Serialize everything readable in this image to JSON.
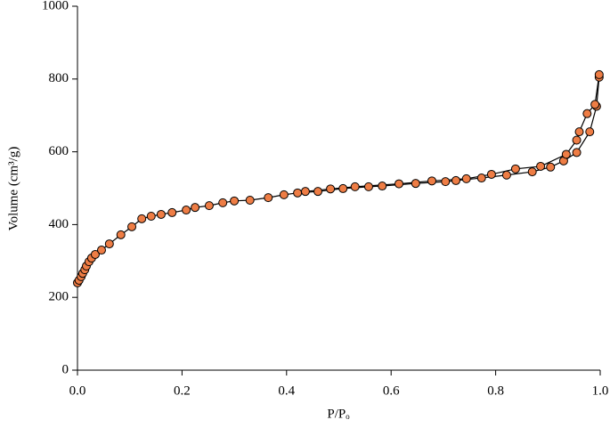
{
  "chart_data": {
    "type": "line",
    "xlabel": "P/Pₒ",
    "ylabel": "Volume (cm³/g)",
    "xlim": [
      0,
      1
    ],
    "ylim": [
      0,
      1000
    ],
    "xticks": [
      {
        "value": 0,
        "label": "0.0"
      },
      0.2,
      0.4,
      0.6,
      0.8,
      {
        "value": 1,
        "label": "1.0"
      }
    ],
    "yticks": [
      0,
      200,
      400,
      600,
      800,
      1000
    ],
    "line_color": "#000000",
    "marker_color": "#ee7d45",
    "series": [
      {
        "x": [
          0.0,
          0.003,
          0.007,
          0.01,
          0.014,
          0.017,
          0.022,
          0.027,
          0.034,
          0.046,
          0.061,
          0.083,
          0.104,
          0.123,
          0.141,
          0.16,
          0.181,
          0.208,
          0.225,
          0.252,
          0.278,
          0.3,
          0.33,
          0.365,
          0.395,
          0.421,
          0.46,
          0.508,
          0.557,
          0.583,
          0.647,
          0.704,
          0.724,
          0.773,
          0.821,
          0.87,
          0.905,
          0.93,
          0.955,
          0.98,
          0.993,
          0.998
        ],
        "values": [
          240,
          247,
          257,
          266,
          276,
          286,
          298,
          308,
          318,
          330,
          347,
          372,
          394,
          416,
          423,
          428,
          433,
          440,
          447,
          452,
          460,
          465,
          467,
          474,
          482,
          487,
          491,
          499,
          504,
          506,
          513,
          518,
          521,
          528,
          536,
          545,
          558,
          575,
          598,
          655,
          725,
          805
        ]
      },
      {
        "x": [
          0.998,
          0.99,
          0.975,
          0.96,
          0.955,
          0.935,
          0.886,
          0.838,
          0.792,
          0.744,
          0.678,
          0.615,
          0.531,
          0.484,
          0.436
        ],
        "values": [
          812,
          730,
          705,
          655,
          632,
          593,
          560,
          553,
          538,
          526,
          520,
          512,
          504,
          498,
          491
        ]
      }
    ]
  }
}
